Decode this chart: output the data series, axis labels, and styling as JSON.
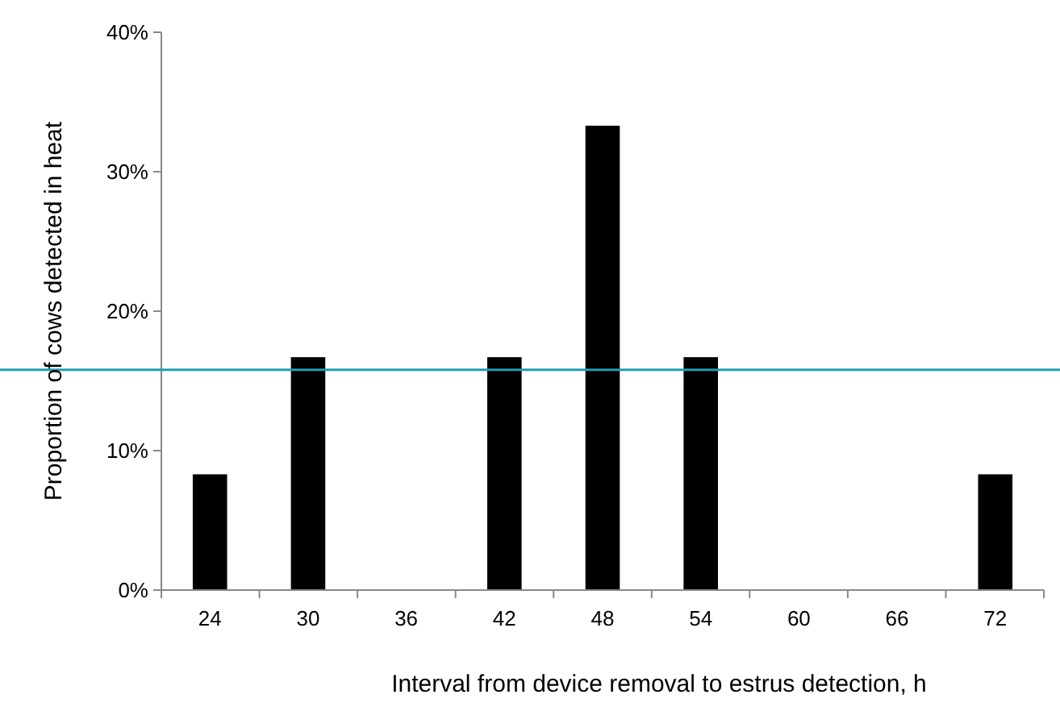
{
  "chart_data": {
    "type": "bar",
    "xlabel": "Interval from device removal to estrus detection, h",
    "ylabel": "Proportion of cows detected in heat",
    "categories": [
      "24",
      "30",
      "36",
      "42",
      "48",
      "54",
      "60",
      "66",
      "72"
    ],
    "values": [
      8.3,
      16.7,
      0,
      16.7,
      33.3,
      16.7,
      0,
      0,
      8.3
    ],
    "color": "#000000",
    "ylim": [
      0,
      40
    ],
    "yticks": [
      {
        "value": 0,
        "label": "0%"
      },
      {
        "value": 10,
        "label": "10%"
      },
      {
        "value": 20,
        "label": "20%"
      },
      {
        "value": 30,
        "label": "30%"
      },
      {
        "value": 40,
        "label": "40%"
      }
    ],
    "grid": false,
    "ref_lines": [
      {
        "axis": "y",
        "value": 15.8,
        "color": "#1f9db5"
      }
    ]
  }
}
